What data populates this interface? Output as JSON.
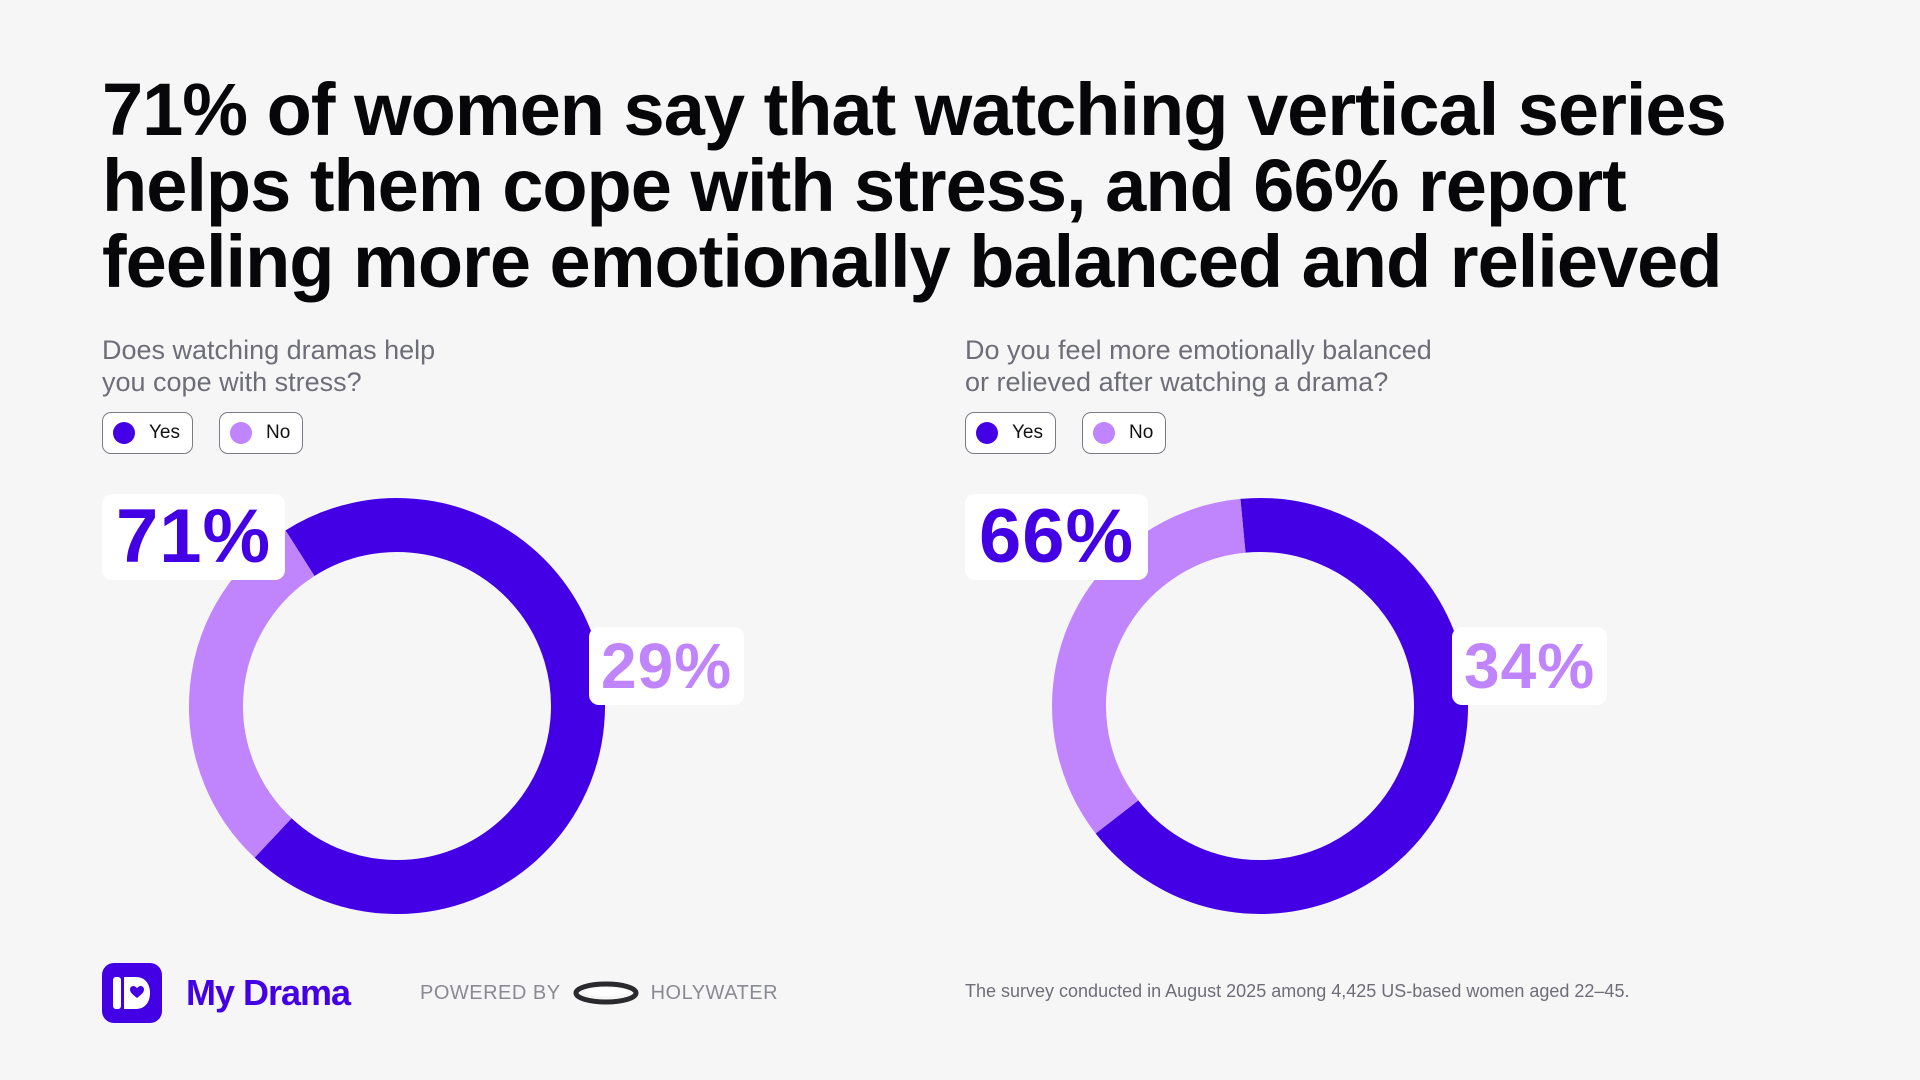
{
  "headline_lines": [
    "71% of women say that watching vertical series",
    "helps them cope with stress, and 66% report",
    "feeling more emotionally balanced and relieved"
  ],
  "colors": {
    "yes": "#4400e5",
    "no": "#c084fc",
    "background": "#f6f6f7"
  },
  "legend": {
    "yes": "Yes",
    "no": "No"
  },
  "chart_data": [
    {
      "type": "pie",
      "variant": "donut",
      "title_lines": [
        "Does watching dramas help",
        "you cope with stress?"
      ],
      "categories": [
        "Yes",
        "No"
      ],
      "values": [
        71,
        29
      ],
      "labels": [
        "71%",
        "29%"
      ],
      "legend_placement": "top-left"
    },
    {
      "type": "pie",
      "variant": "donut",
      "title_lines": [
        "Do you feel more emotionally balanced",
        "or relieved after watching a drama?"
      ],
      "categories": [
        "Yes",
        "No"
      ],
      "values": [
        66,
        34
      ],
      "labels": [
        "66%",
        "34%"
      ],
      "legend_placement": "top-left"
    }
  ],
  "footer": {
    "app_name": "My Drama",
    "powered_by": "POWERED BY",
    "partner": "HOLYWATER",
    "icon": "my-drama-app-icon",
    "partner_icon": "holywater-ring-logo",
    "note": "The survey conducted in August 2025 among 4,425 US-based women aged 22–45."
  }
}
